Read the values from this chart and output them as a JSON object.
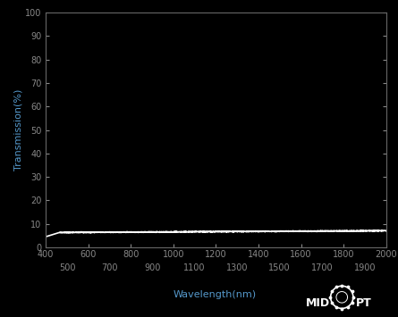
{
  "background_color": "#000000",
  "plot_bg_color": "#000000",
  "line_color": "#ffffff",
  "tick_color": "#888888",
  "label_color": "#5599cc",
  "spine_color": "#666666",
  "xlabel": "Wavelength(nm)",
  "ylabel": "Transmission(%)",
  "xlim": [
    400,
    2000
  ],
  "ylim": [
    0,
    100
  ],
  "yticks": [
    0,
    10,
    20,
    30,
    40,
    50,
    60,
    70,
    80,
    90,
    100
  ],
  "xticks_major": [
    400,
    600,
    800,
    1000,
    1200,
    1400,
    1600,
    1800,
    2000
  ],
  "xticks_minor": [
    500,
    700,
    900,
    1100,
    1300,
    1500,
    1700,
    1900
  ],
  "transmission_value": 6.25,
  "wavelength_start": 400,
  "wavelength_end": 2000,
  "label_fontsize": 8,
  "tick_fontsize": 7,
  "line_width": 1.2,
  "figsize": [
    4.45,
    3.55
  ],
  "dpi": 100
}
